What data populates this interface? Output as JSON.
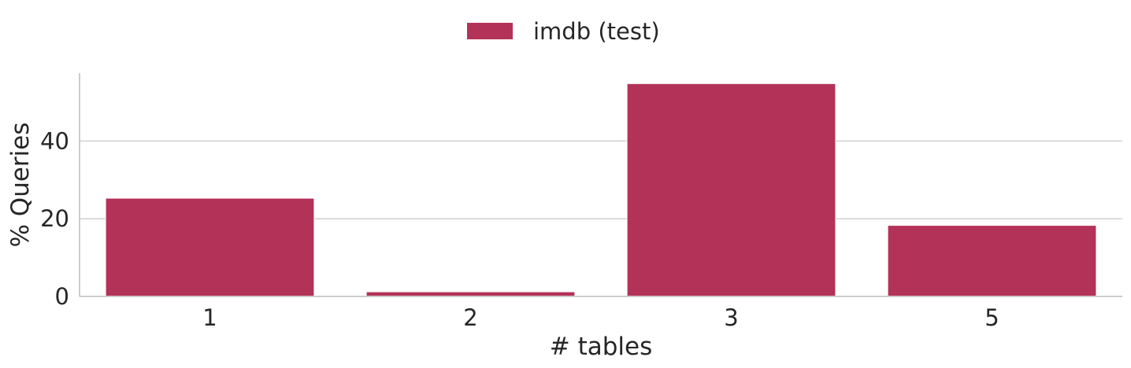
{
  "chart_data": {
    "type": "bar",
    "categories": [
      "1",
      "2",
      "3",
      "5"
    ],
    "series": [
      {
        "name": "imdb (test)",
        "values": [
          25.3,
          1.2,
          54.8,
          18.3
        ],
        "color": "#b33257"
      }
    ],
    "xlabel": "# tables",
    "ylabel": "% Queries",
    "ylim": [
      0,
      57.5
    ],
    "yticks": [
      0,
      20,
      40
    ],
    "grid": "horizontal",
    "legend_position": "top-center"
  }
}
